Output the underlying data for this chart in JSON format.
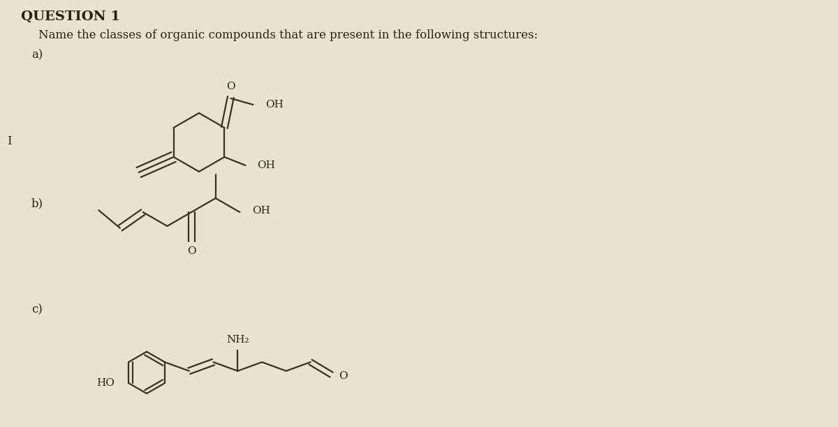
{
  "title": "QUESTION 1",
  "subtitle": "Name the classes of organic compounds that are present in the following structures:",
  "label_a": "a)",
  "label_b": "b)",
  "label_c": "c)",
  "bg_color": "#e8e2d5",
  "line_color": "#3d3020",
  "text_color": "#2a2010",
  "font_size_title": 14,
  "font_size_subtitle": 12,
  "font_size_label": 12,
  "font_size_atom": 11
}
